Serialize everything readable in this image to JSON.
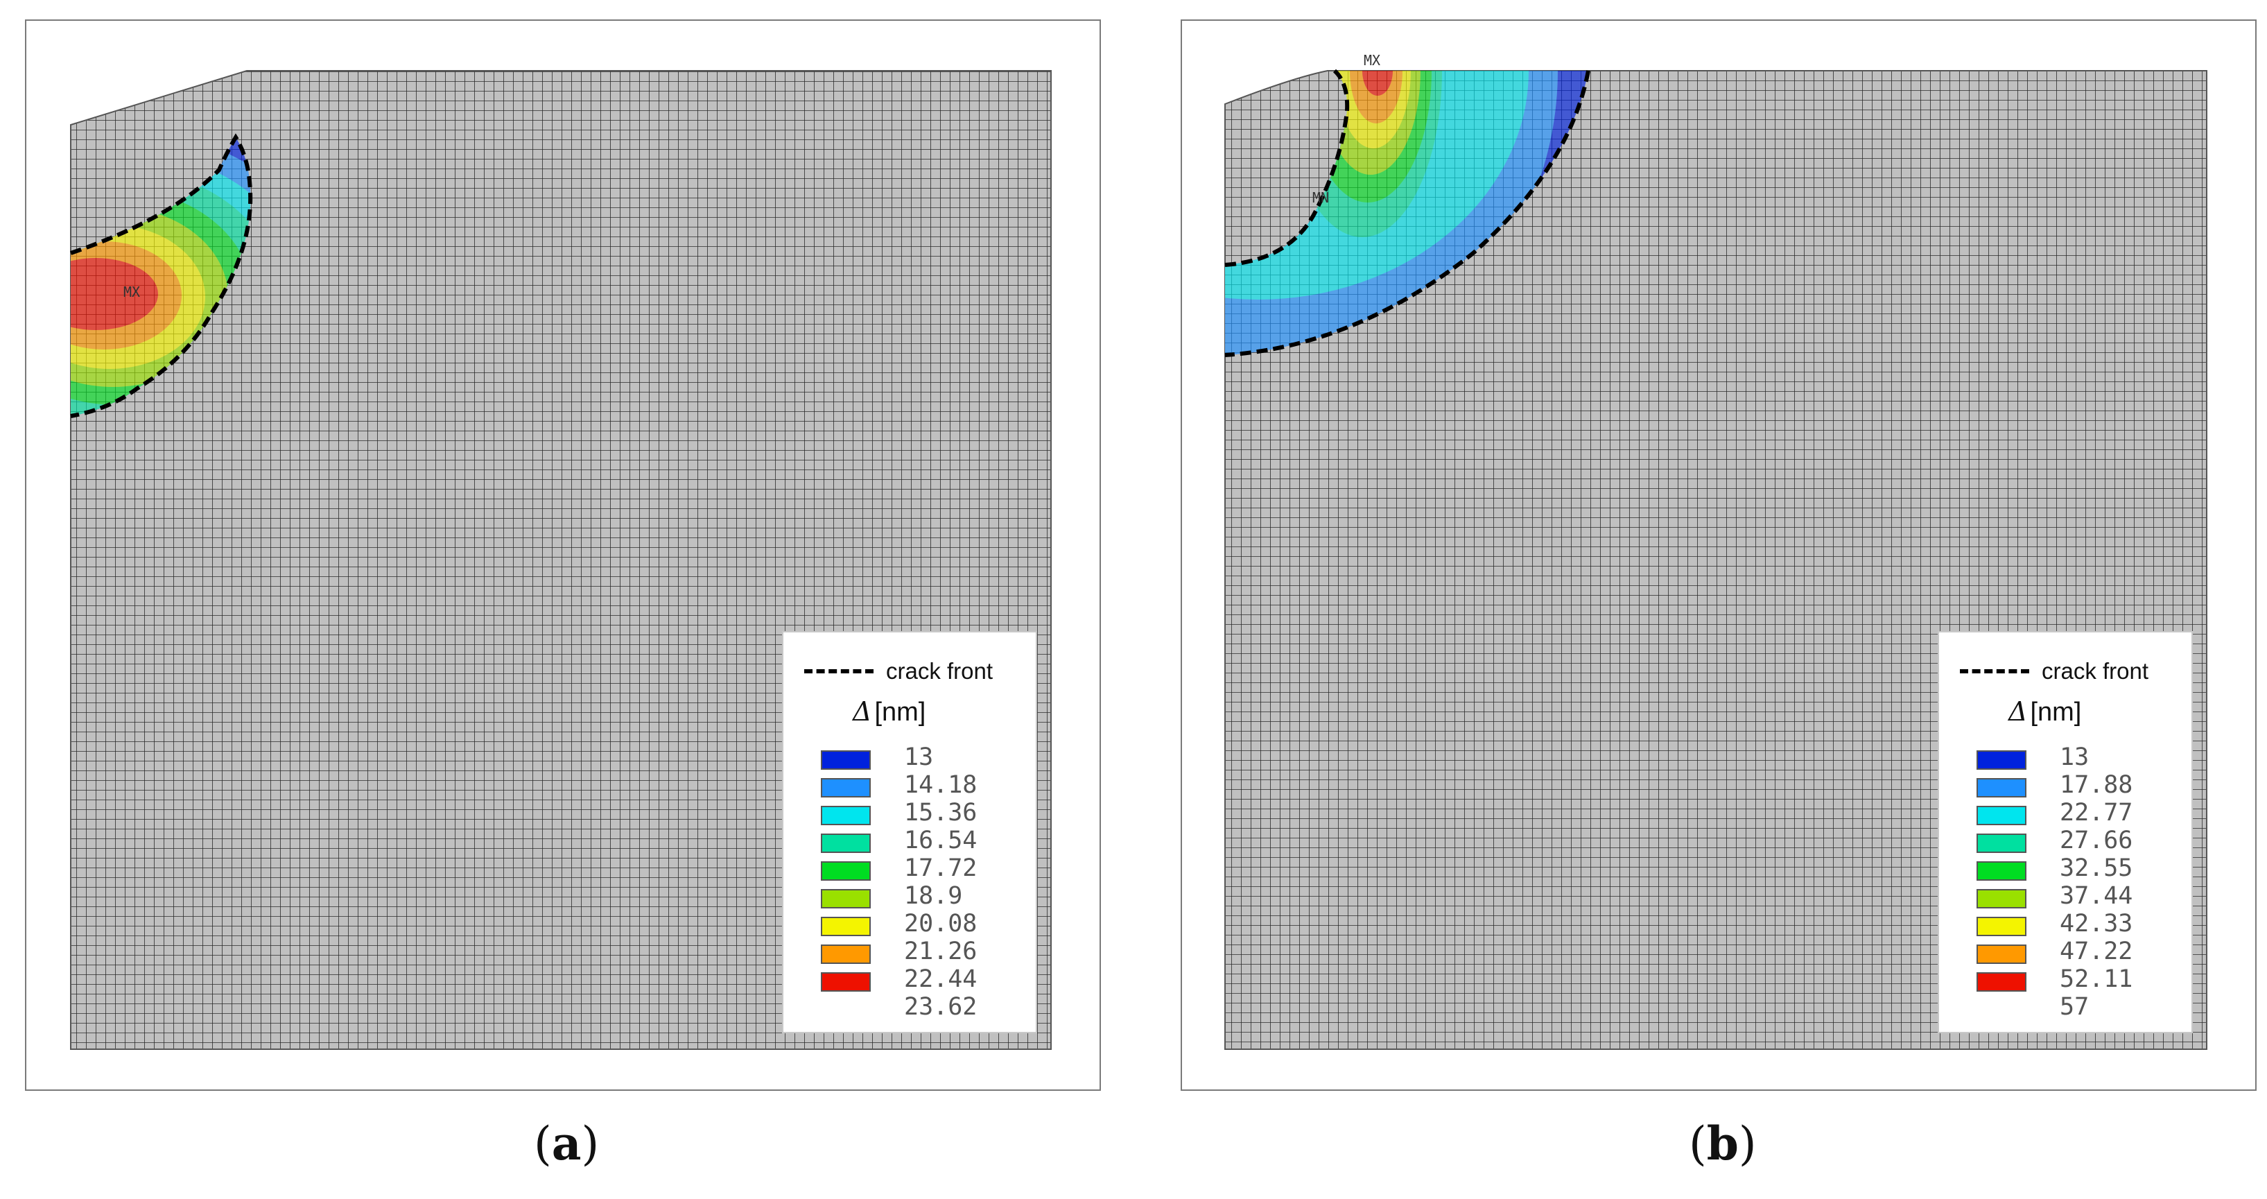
{
  "panels": [
    {
      "id": "a",
      "caption_letter": "a",
      "max_marker": "MX",
      "legend": {
        "crack_front_label": "crack front",
        "unit_symbol": "Δ",
        "unit": "[nm]",
        "levels": [
          "13",
          "14.18",
          "15.36",
          "16.54",
          "17.72",
          "18.9",
          "20.08",
          "21.26",
          "22.44",
          "23.62"
        ]
      }
    },
    {
      "id": "b",
      "caption_letter": "b",
      "max_marker": "MX",
      "min_marker": "MN",
      "legend": {
        "crack_front_label": "crack front",
        "unit_symbol": "Δ",
        "unit": "[nm]",
        "levels": [
          "13",
          "17.88",
          "22.77",
          "27.66",
          "32.55",
          "37.44",
          "42.33",
          "47.22",
          "52.11",
          "57"
        ]
      }
    }
  ],
  "colors": {
    "mesh_fill": "#c0c0c0",
    "mesh_line": "#2a2a2a",
    "contour_bands": [
      "#0022dd",
      "#1e90ff",
      "#00e5ee",
      "#00e0a0",
      "#00dd22",
      "#9ae000",
      "#f4f400",
      "#ff9900",
      "#ee1100"
    ]
  }
}
